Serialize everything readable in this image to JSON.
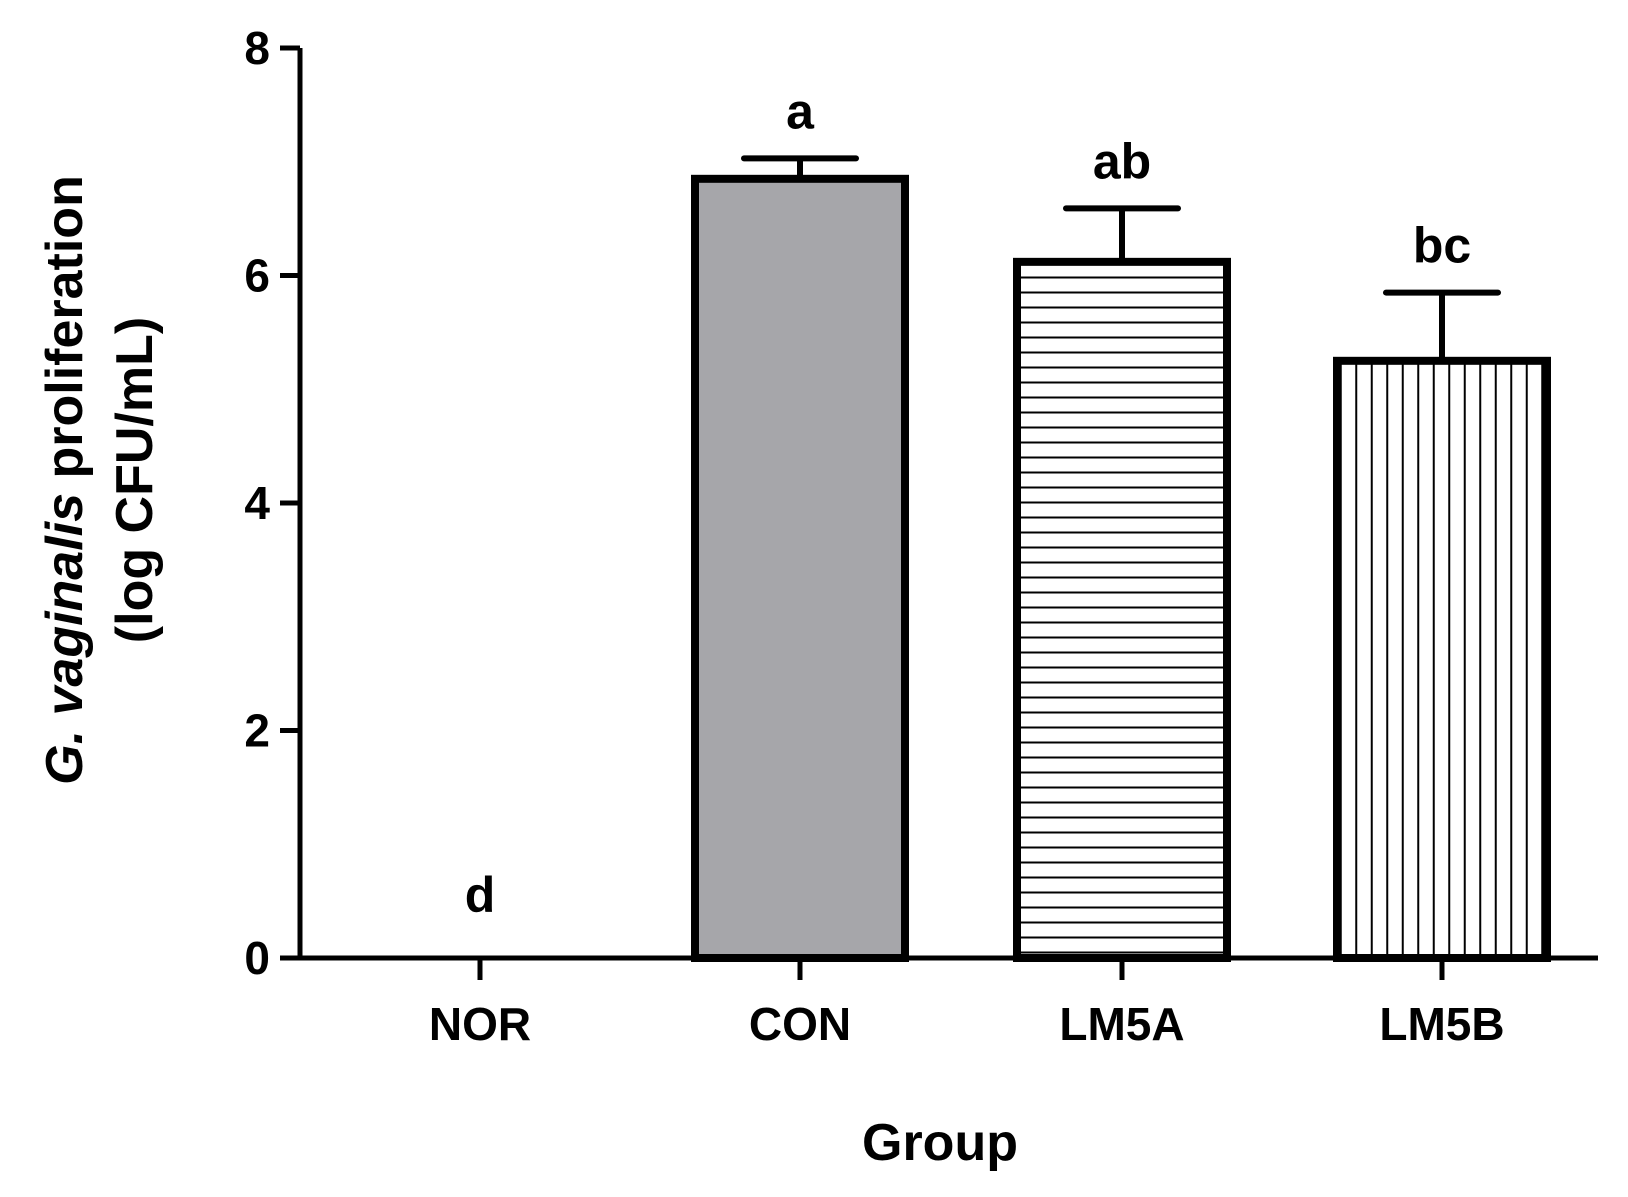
{
  "chart_data": {
    "type": "bar",
    "title": "",
    "xlabel": "Group",
    "ylabel": {
      "line1_italic": "G. vaginalis",
      "line1_rest": " proliferation",
      "line2": "(log CFU/mL)"
    },
    "categories": [
      "NOR",
      "CON",
      "LM5A",
      "LM5B"
    ],
    "values": [
      0,
      6.85,
      6.12,
      5.25
    ],
    "error_upper": [
      0,
      0.18,
      0.47,
      0.6
    ],
    "significance_letters": [
      "d",
      "a",
      "ab",
      "bc"
    ],
    "fill_patterns": [
      "none",
      "solid-gray",
      "horizontal-lines",
      "vertical-lines"
    ],
    "ylim": [
      0,
      8
    ],
    "yticks": [
      0,
      2,
      4,
      6,
      8
    ],
    "ytick_labels": [
      "0",
      "2",
      "4",
      "6",
      "8"
    ],
    "grid": false,
    "legend": "none",
    "colors": {
      "bar_edge": "#000000",
      "con_fill": "#a6a6aa",
      "pattern_line": "#000000",
      "background": "#ffffff"
    }
  }
}
